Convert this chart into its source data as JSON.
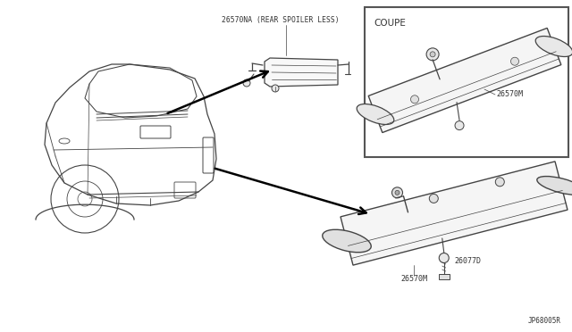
{
  "bg_color": "#ffffff",
  "line_color": "#444444",
  "text_color": "#333333",
  "labels": {
    "coupe_box": "COUPE",
    "part1_label": "26570NA (REAR SPOILER LESS)",
    "part2_label": "26570M",
    "part3_label": "26570M",
    "part4_label": "26077D",
    "diagram_code": "JP68005R"
  }
}
